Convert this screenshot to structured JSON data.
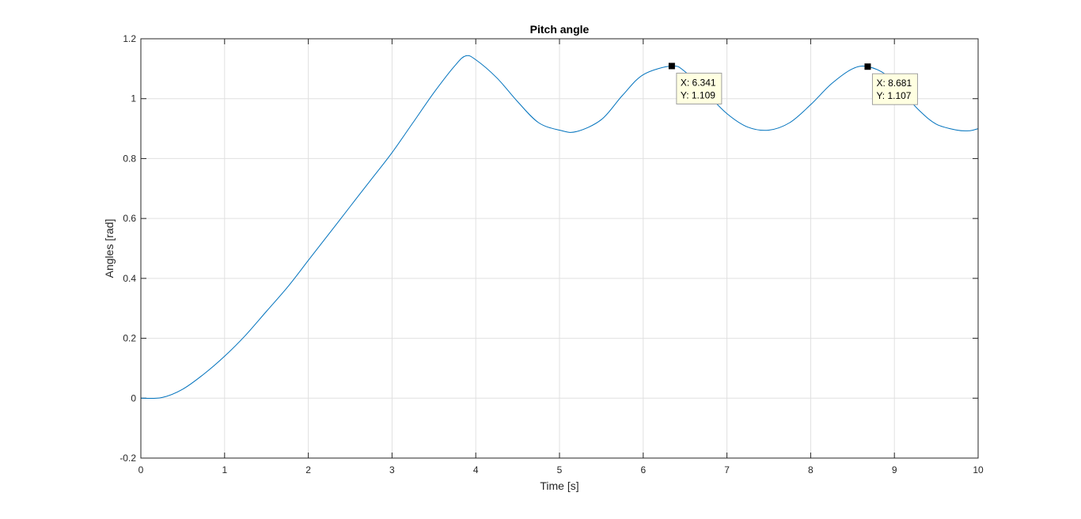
{
  "chart_data": {
    "type": "line",
    "title": "Pitch angle",
    "xlabel": "Time [s]",
    "ylabel": "Angles [rad]",
    "xlim": [
      0,
      10
    ],
    "ylim": [
      -0.2,
      1.2
    ],
    "x_ticks": [
      "0",
      "1",
      "2",
      "3",
      "4",
      "5",
      "6",
      "7",
      "8",
      "9",
      "10"
    ],
    "y_ticks": [
      "-0.2",
      "0",
      "0.2",
      "0.4",
      "0.6",
      "0.8",
      "1",
      "1.2"
    ],
    "grid": true,
    "line_color": "#0072BD",
    "series": [
      {
        "x": [
          0,
          0.25,
          0.5,
          0.75,
          1.0,
          1.25,
          1.5,
          1.75,
          2.0,
          2.25,
          2.5,
          2.75,
          3.0,
          3.25,
          3.5,
          3.75,
          3.88,
          4.0,
          4.25,
          4.5,
          4.75,
          5.0,
          5.2,
          5.5,
          5.75,
          6.0,
          6.341,
          6.5,
          6.75,
          7.0,
          7.25,
          7.5,
          7.75,
          8.0,
          8.25,
          8.5,
          8.681,
          8.9,
          9.1,
          9.3,
          9.5,
          9.75,
          9.9,
          10.0
        ],
        "y": [
          0.0,
          0.002,
          0.03,
          0.08,
          0.14,
          0.21,
          0.29,
          0.37,
          0.46,
          0.55,
          0.64,
          0.73,
          0.82,
          0.92,
          1.02,
          1.11,
          1.143,
          1.13,
          1.07,
          0.99,
          0.92,
          0.895,
          0.89,
          0.93,
          1.01,
          1.08,
          1.109,
          1.09,
          1.02,
          0.95,
          0.905,
          0.895,
          0.92,
          0.98,
          1.05,
          1.1,
          1.107,
          1.08,
          1.02,
          0.96,
          0.915,
          0.895,
          0.893,
          0.9
        ]
      }
    ],
    "annotations": [
      {
        "x": 6.341,
        "y": 1.109,
        "line1": "X: 6.341",
        "line2": "Y: 1.109"
      },
      {
        "x": 8.681,
        "y": 1.107,
        "line1": "X: 8.681",
        "line2": "Y: 1.107"
      }
    ]
  }
}
